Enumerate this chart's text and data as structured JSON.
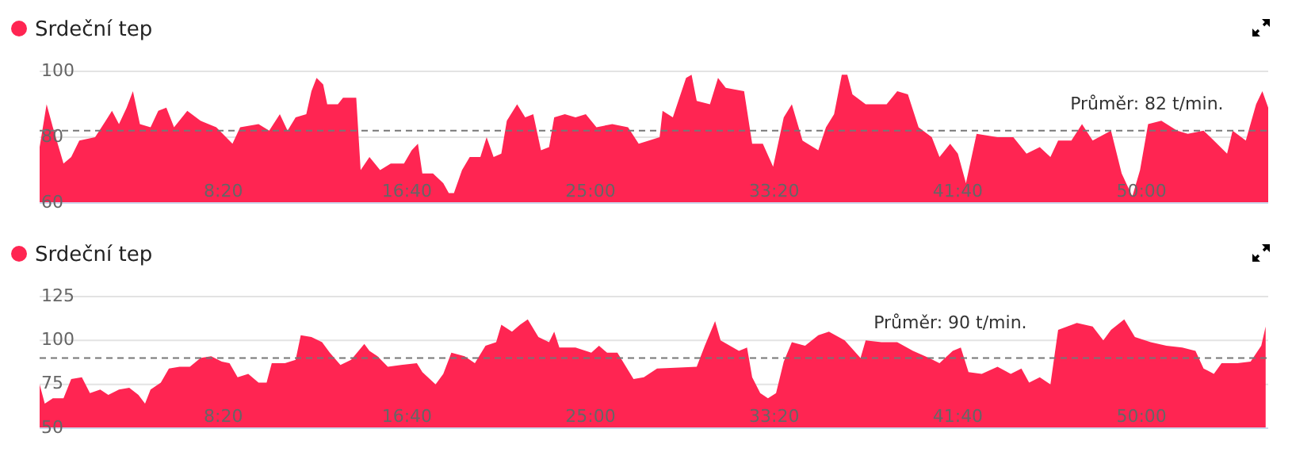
{
  "chart_data": [
    {
      "type": "area",
      "x": [
        0,
        19,
        36,
        65,
        86,
        108,
        151,
        180,
        197,
        216,
        237,
        254,
        273,
        302,
        323,
        345,
        366,
        402,
        438,
        481,
        525,
        546,
        596,
        625,
        654,
        675,
        697,
        726,
        740,
        754,
        772,
        783,
        812,
        826,
        862,
        874,
        898,
        927,
        956,
        992,
        1013,
        1030,
        1042,
        1071,
        1099,
        1114,
        1128,
        1150,
        1171,
        1200,
        1217,
        1236,
        1257,
        1272,
        1300,
        1322,
        1344,
        1365,
        1387,
        1401,
        1430,
        1459,
        1487,
        1516,
        1559,
        1602,
        1631,
        1659,
        1688,
        1696,
        1724,
        1760,
        1775,
        1789,
        1825,
        1847,
        1868,
        1918,
        1940,
        1969,
        1997,
        2026,
        2048,
        2077,
        2120,
        2141,
        2163,
        2184,
        2199,
        2213,
        2249,
        2306,
        2335,
        2364,
        2393,
        2429,
        2450,
        2479,
        2500,
        2522,
        2551,
        2608,
        2651,
        2687,
        2723,
        2752,
        2773,
        2809,
        2838,
        2867,
        2917,
        2946,
        2975,
        2996,
        3018,
        3054,
        3097,
        3126,
        3169,
        3197,
        3233,
        3248,
        3284,
        3312,
        3329,
        3345
      ],
      "series": [
        {
          "name": "Srdeční tep",
          "color": "#ff2552",
          "values": [
            77,
            90,
            83,
            72,
            74,
            79,
            80,
            85,
            88,
            84,
            89,
            94,
            84,
            83,
            88,
            89,
            83,
            88,
            85,
            83,
            78,
            83,
            84,
            82,
            87,
            82,
            86,
            87,
            94,
            98,
            96,
            90,
            90,
            92,
            92,
            70,
            74,
            70,
            72,
            72,
            76,
            78,
            69,
            69,
            66,
            63,
            63,
            70,
            74,
            74,
            80,
            74,
            75,
            85,
            90,
            86,
            87,
            76,
            77,
            86,
            87,
            86,
            87,
            83,
            84,
            83,
            78,
            79,
            80,
            88,
            86,
            98,
            99,
            91,
            90,
            98,
            95,
            94,
            78,
            78,
            71,
            86,
            90,
            79,
            76,
            83,
            87,
            99,
            99,
            93,
            90,
            90,
            94,
            93,
            83,
            80,
            74,
            78,
            75,
            66,
            81,
            80,
            80,
            75,
            77,
            74,
            79,
            79,
            84,
            79,
            82,
            69,
            62,
            70,
            84,
            85,
            82,
            81,
            82,
            79,
            75,
            82,
            79,
            90,
            94,
            89
          ]
        }
      ],
      "xlim": [
        0,
        3345
      ],
      "xticks": [
        {
          "value": 500,
          "label": "8:20"
        },
        {
          "value": 1000,
          "label": "16:40"
        },
        {
          "value": 1500,
          "label": "25:00"
        },
        {
          "value": 2000,
          "label": "33:20"
        },
        {
          "value": 2500,
          "label": "41:40"
        },
        {
          "value": 3000,
          "label": "50:00"
        }
      ],
      "ylim": [
        60,
        100
      ],
      "yticks": [
        60,
        80,
        100
      ],
      "grid": "y",
      "legend": "top left",
      "ref_lines": [
        {
          "axis": "y",
          "value": 82,
          "label": "Průměr: 82 t/min.",
          "line_style": "dashed"
        }
      ]
    },
    {
      "type": "area",
      "x": [
        0,
        14,
        36,
        65,
        86,
        115,
        137,
        165,
        187,
        216,
        244,
        269,
        287,
        302,
        330,
        352,
        381,
        409,
        438,
        467,
        496,
        517,
        539,
        568,
        596,
        618,
        632,
        668,
        697,
        711,
        740,
        769,
        790,
        819,
        848,
        884,
        898,
        920,
        948,
        984,
        1027,
        1042,
        1078,
        1099,
        1121,
        1157,
        1185,
        1214,
        1243,
        1257,
        1286,
        1308,
        1329,
        1358,
        1387,
        1401,
        1415,
        1459,
        1502,
        1523,
        1545,
        1573,
        1588,
        1617,
        1645,
        1681,
        1789,
        1811,
        1839,
        1854,
        1904,
        1926,
        1940,
        1962,
        1983,
        2005,
        2026,
        2048,
        2084,
        2120,
        2149,
        2192,
        2235,
        2249,
        2292,
        2335,
        2378,
        2422,
        2450,
        2486,
        2508,
        2529,
        2565,
        2608,
        2644,
        2673,
        2694,
        2723,
        2752,
        2773,
        2824,
        2867,
        2896,
        2917,
        2953,
        2982,
        3025,
        3068,
        3111,
        3147,
        3169,
        3197,
        3218,
        3261,
        3297,
        3326,
        3338
      ],
      "series": [
        {
          "name": "Srdeční tep",
          "color": "#ff2552",
          "values": [
            75,
            64,
            67,
            67,
            78,
            79,
            70,
            72,
            69,
            72,
            73,
            69,
            64,
            72,
            76,
            84,
            85,
            85,
            90,
            91,
            88,
            87,
            79,
            81,
            76,
            76,
            87,
            87,
            89,
            103,
            102,
            99,
            93,
            86,
            89,
            98,
            94,
            91,
            85,
            86,
            87,
            82,
            75,
            81,
            93,
            91,
            87,
            97,
            99,
            109,
            105,
            109,
            112,
            102,
            99,
            105,
            96,
            96,
            93,
            97,
            93,
            93,
            88,
            78,
            79,
            84,
            85,
            97,
            111,
            100,
            94,
            96,
            79,
            70,
            67,
            70,
            88,
            99,
            97,
            103,
            105,
            100,
            90,
            100,
            99,
            99,
            94,
            90,
            87,
            94,
            96,
            82,
            81,
            85,
            81,
            84,
            76,
            79,
            75,
            106,
            110,
            108,
            100,
            106,
            112,
            102,
            99,
            97,
            96,
            94,
            84,
            81,
            87,
            87,
            88,
            97,
            108
          ]
        }
      ],
      "xlim": [
        0,
        3345
      ],
      "xticks": [
        {
          "value": 500,
          "label": "8:20"
        },
        {
          "value": 1000,
          "label": "16:40"
        },
        {
          "value": 1500,
          "label": "25:00"
        },
        {
          "value": 2000,
          "label": "33:20"
        },
        {
          "value": 2500,
          "label": "41:40"
        },
        {
          "value": 3000,
          "label": "50:00"
        }
      ],
      "ylim": [
        50,
        125
      ],
      "yticks": [
        50,
        75,
        100,
        125
      ],
      "grid": "y",
      "legend": "top left",
      "ref_lines": [
        {
          "axis": "y",
          "value": 90,
          "label": "Průměr: 90 t/min.",
          "line_style": "dashed"
        }
      ]
    }
  ]
}
